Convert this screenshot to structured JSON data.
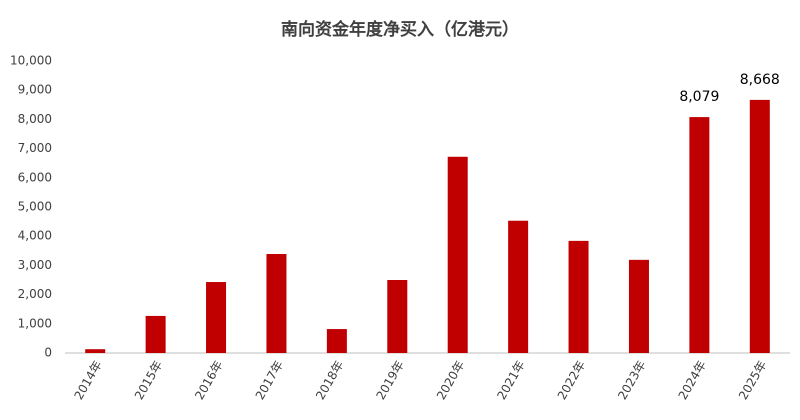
{
  "chart_data": {
    "type": "bar",
    "title": "南向资金年度净买入（亿港元）",
    "categories": [
      "2014年",
      "2015年",
      "2016年",
      "2017年",
      "2018年",
      "2019年",
      "2020年",
      "2021年",
      "2022年",
      "2023年",
      "2024年",
      "2025年"
    ],
    "values": [
      130,
      1270,
      2430,
      3390,
      820,
      2500,
      6720,
      4530,
      3840,
      3190,
      8079,
      8668
    ],
    "value_labels": [
      null,
      null,
      null,
      null,
      null,
      null,
      null,
      null,
      null,
      null,
      "8,079",
      "8,668"
    ],
    "color": "#c00000",
    "ylim": [
      0,
      10000
    ],
    "yticks": [
      0,
      {
        "value": 1000,
        "label": "1,000"
      },
      {
        "value": 2000,
        "label": "2,000"
      },
      {
        "value": 3000,
        "label": "3,000"
      },
      {
        "value": 4000,
        "label": "4,000"
      },
      {
        "value": 5000,
        "label": "5,000"
      },
      {
        "value": 6000,
        "label": "6,000"
      },
      {
        "value": 7000,
        "label": "7,000"
      },
      {
        "value": 8000,
        "label": "8,000"
      },
      {
        "value": 9000,
        "label": "9,000"
      },
      {
        "value": 10000,
        "label": "10,000"
      }
    ],
    "grid": false
  }
}
